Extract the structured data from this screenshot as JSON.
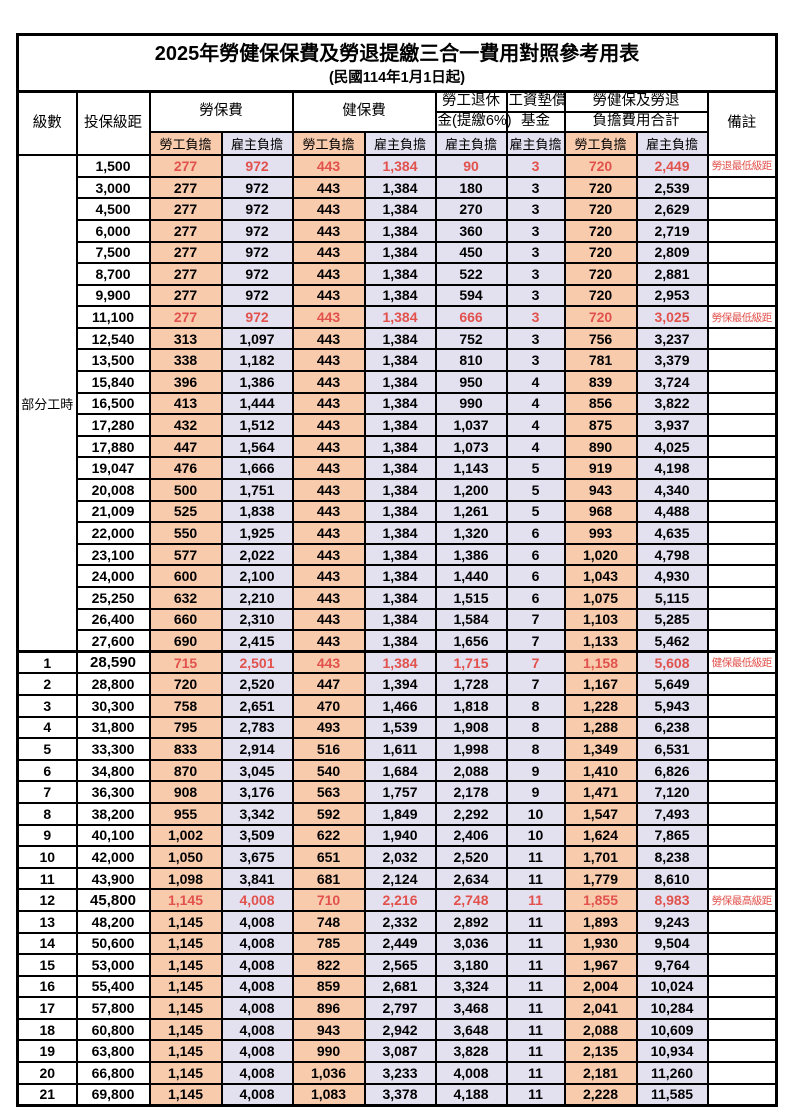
{
  "title": "2025年勞健保保費及勞退提繳三合一費用對照參考用表",
  "subtitle": "(民國114年1月1日起)",
  "header": {
    "level": "級數",
    "bracket": "投保級距",
    "labor_insurance": "勞保費",
    "health_insurance": "健保費",
    "pension_line1": "勞工退休",
    "pension_line2": "金(提繳6%)",
    "wage_fund_line1": "工資墊償",
    "wage_fund_line2": "基金",
    "total_line1": "勞健保及勞退",
    "total_line2": "負擔費用合計",
    "note": "備註",
    "employee_share": "勞工負擔",
    "employer_share": "雇主負擔"
  },
  "part_time_label": "部分工時",
  "part_time_rowspan": 23,
  "colors": {
    "employee_col_bg": "#F8CBAD",
    "employer_col_bg": "#E3E0F0",
    "highlight_number": "#E2524C",
    "note_text": "#E57A74",
    "border": "#000000",
    "page_bg": "#FFFFFF"
  },
  "rows": [
    {
      "level": "",
      "bracket": "1,500",
      "values": [
        "277",
        "972",
        "443",
        "1,384",
        "90",
        "3",
        "720",
        "2,449"
      ],
      "note": "勞退最低級距",
      "highlight": true
    },
    {
      "level": "",
      "bracket": "3,000",
      "values": [
        "277",
        "972",
        "443",
        "1,384",
        "180",
        "3",
        "720",
        "2,539"
      ],
      "note": ""
    },
    {
      "level": "",
      "bracket": "4,500",
      "values": [
        "277",
        "972",
        "443",
        "1,384",
        "270",
        "3",
        "720",
        "2,629"
      ],
      "note": ""
    },
    {
      "level": "",
      "bracket": "6,000",
      "values": [
        "277",
        "972",
        "443",
        "1,384",
        "360",
        "3",
        "720",
        "2,719"
      ],
      "note": ""
    },
    {
      "level": "",
      "bracket": "7,500",
      "values": [
        "277",
        "972",
        "443",
        "1,384",
        "450",
        "3",
        "720",
        "2,809"
      ],
      "note": ""
    },
    {
      "level": "",
      "bracket": "8,700",
      "values": [
        "277",
        "972",
        "443",
        "1,384",
        "522",
        "3",
        "720",
        "2,881"
      ],
      "note": ""
    },
    {
      "level": "",
      "bracket": "9,900",
      "values": [
        "277",
        "972",
        "443",
        "1,384",
        "594",
        "3",
        "720",
        "2,953"
      ],
      "note": ""
    },
    {
      "level": "",
      "bracket": "11,100",
      "values": [
        "277",
        "972",
        "443",
        "1,384",
        "666",
        "3",
        "720",
        "3,025"
      ],
      "note": "勞保最低級距",
      "highlight": true
    },
    {
      "level": "",
      "bracket": "12,540",
      "values": [
        "313",
        "1,097",
        "443",
        "1,384",
        "752",
        "3",
        "756",
        "3,237"
      ],
      "note": ""
    },
    {
      "level": "",
      "bracket": "13,500",
      "values": [
        "338",
        "1,182",
        "443",
        "1,384",
        "810",
        "3",
        "781",
        "3,379"
      ],
      "note": ""
    },
    {
      "level": "",
      "bracket": "15,840",
      "values": [
        "396",
        "1,386",
        "443",
        "1,384",
        "950",
        "4",
        "839",
        "3,724"
      ],
      "note": ""
    },
    {
      "level": "",
      "bracket": "16,500",
      "values": [
        "413",
        "1,444",
        "443",
        "1,384",
        "990",
        "4",
        "856",
        "3,822"
      ],
      "note": ""
    },
    {
      "level": "",
      "bracket": "17,280",
      "values": [
        "432",
        "1,512",
        "443",
        "1,384",
        "1,037",
        "4",
        "875",
        "3,937"
      ],
      "note": ""
    },
    {
      "level": "",
      "bracket": "17,880",
      "values": [
        "447",
        "1,564",
        "443",
        "1,384",
        "1,073",
        "4",
        "890",
        "4,025"
      ],
      "note": ""
    },
    {
      "level": "",
      "bracket": "19,047",
      "values": [
        "476",
        "1,666",
        "443",
        "1,384",
        "1,143",
        "5",
        "919",
        "4,198"
      ],
      "note": ""
    },
    {
      "level": "",
      "bracket": "20,008",
      "values": [
        "500",
        "1,751",
        "443",
        "1,384",
        "1,200",
        "5",
        "943",
        "4,340"
      ],
      "note": ""
    },
    {
      "level": "",
      "bracket": "21,009",
      "values": [
        "525",
        "1,838",
        "443",
        "1,384",
        "1,261",
        "5",
        "968",
        "4,488"
      ],
      "note": ""
    },
    {
      "level": "",
      "bracket": "22,000",
      "values": [
        "550",
        "1,925",
        "443",
        "1,384",
        "1,320",
        "6",
        "993",
        "4,635"
      ],
      "note": ""
    },
    {
      "level": "",
      "bracket": "23,100",
      "values": [
        "577",
        "2,022",
        "443",
        "1,384",
        "1,386",
        "6",
        "1,020",
        "4,798"
      ],
      "note": ""
    },
    {
      "level": "",
      "bracket": "24,000",
      "values": [
        "600",
        "2,100",
        "443",
        "1,384",
        "1,440",
        "6",
        "1,043",
        "4,930"
      ],
      "note": ""
    },
    {
      "level": "",
      "bracket": "25,250",
      "values": [
        "632",
        "2,210",
        "443",
        "1,384",
        "1,515",
        "6",
        "1,075",
        "5,115"
      ],
      "note": ""
    },
    {
      "level": "",
      "bracket": "26,400",
      "values": [
        "660",
        "2,310",
        "443",
        "1,384",
        "1,584",
        "7",
        "1,103",
        "5,285"
      ],
      "note": ""
    },
    {
      "level": "",
      "bracket": "27,600",
      "values": [
        "690",
        "2,415",
        "443",
        "1,384",
        "1,656",
        "7",
        "1,133",
        "5,462"
      ],
      "note": ""
    },
    {
      "level": "1",
      "bracket": "28,590",
      "values": [
        "715",
        "2,501",
        "443",
        "1,384",
        "1,715",
        "7",
        "1,158",
        "5,608"
      ],
      "note": "健保最低級距",
      "highlight": true,
      "thick_top": true,
      "big_bracket": true
    },
    {
      "level": "2",
      "bracket": "28,800",
      "values": [
        "720",
        "2,520",
        "447",
        "1,394",
        "1,728",
        "7",
        "1,167",
        "5,649"
      ],
      "note": ""
    },
    {
      "level": "3",
      "bracket": "30,300",
      "values": [
        "758",
        "2,651",
        "470",
        "1,466",
        "1,818",
        "8",
        "1,228",
        "5,943"
      ],
      "note": ""
    },
    {
      "level": "4",
      "bracket": "31,800",
      "values": [
        "795",
        "2,783",
        "493",
        "1,539",
        "1,908",
        "8",
        "1,288",
        "6,238"
      ],
      "note": ""
    },
    {
      "level": "5",
      "bracket": "33,300",
      "values": [
        "833",
        "2,914",
        "516",
        "1,611",
        "1,998",
        "8",
        "1,349",
        "6,531"
      ],
      "note": ""
    },
    {
      "level": "6",
      "bracket": "34,800",
      "values": [
        "870",
        "3,045",
        "540",
        "1,684",
        "2,088",
        "9",
        "1,410",
        "6,826"
      ],
      "note": ""
    },
    {
      "level": "7",
      "bracket": "36,300",
      "values": [
        "908",
        "3,176",
        "563",
        "1,757",
        "2,178",
        "9",
        "1,471",
        "7,120"
      ],
      "note": ""
    },
    {
      "level": "8",
      "bracket": "38,200",
      "values": [
        "955",
        "3,342",
        "592",
        "1,849",
        "2,292",
        "10",
        "1,547",
        "7,493"
      ],
      "note": ""
    },
    {
      "level": "9",
      "bracket": "40,100",
      "values": [
        "1,002",
        "3,509",
        "622",
        "1,940",
        "2,406",
        "10",
        "1,624",
        "7,865"
      ],
      "note": ""
    },
    {
      "level": "10",
      "bracket": "42,000",
      "values": [
        "1,050",
        "3,675",
        "651",
        "2,032",
        "2,520",
        "11",
        "1,701",
        "8,238"
      ],
      "note": ""
    },
    {
      "level": "11",
      "bracket": "43,900",
      "values": [
        "1,098",
        "3,841",
        "681",
        "2,124",
        "2,634",
        "11",
        "1,779",
        "8,610"
      ],
      "note": ""
    },
    {
      "level": "12",
      "bracket": "45,800",
      "values": [
        "1,145",
        "4,008",
        "710",
        "2,216",
        "2,748",
        "11",
        "1,855",
        "8,983"
      ],
      "note": "勞保最高級距",
      "highlight": true,
      "big_bracket": true
    },
    {
      "level": "13",
      "bracket": "48,200",
      "values": [
        "1,145",
        "4,008",
        "748",
        "2,332",
        "2,892",
        "11",
        "1,893",
        "9,243"
      ],
      "note": ""
    },
    {
      "level": "14",
      "bracket": "50,600",
      "values": [
        "1,145",
        "4,008",
        "785",
        "2,449",
        "3,036",
        "11",
        "1,930",
        "9,504"
      ],
      "note": ""
    },
    {
      "level": "15",
      "bracket": "53,000",
      "values": [
        "1,145",
        "4,008",
        "822",
        "2,565",
        "3,180",
        "11",
        "1,967",
        "9,764"
      ],
      "note": ""
    },
    {
      "level": "16",
      "bracket": "55,400",
      "values": [
        "1,145",
        "4,008",
        "859",
        "2,681",
        "3,324",
        "11",
        "2,004",
        "10,024"
      ],
      "note": ""
    },
    {
      "level": "17",
      "bracket": "57,800",
      "values": [
        "1,145",
        "4,008",
        "896",
        "2,797",
        "3,468",
        "11",
        "2,041",
        "10,284"
      ],
      "note": ""
    },
    {
      "level": "18",
      "bracket": "60,800",
      "values": [
        "1,145",
        "4,008",
        "943",
        "2,942",
        "3,648",
        "11",
        "2,088",
        "10,609"
      ],
      "note": ""
    },
    {
      "level": "19",
      "bracket": "63,800",
      "values": [
        "1,145",
        "4,008",
        "990",
        "3,087",
        "3,828",
        "11",
        "2,135",
        "10,934"
      ],
      "note": ""
    },
    {
      "level": "20",
      "bracket": "66,800",
      "values": [
        "1,145",
        "4,008",
        "1,036",
        "3,233",
        "4,008",
        "11",
        "2,181",
        "11,260"
      ],
      "note": ""
    },
    {
      "level": "21",
      "bracket": "69,800",
      "values": [
        "1,145",
        "4,008",
        "1,083",
        "3,378",
        "4,188",
        "11",
        "2,228",
        "11,585"
      ],
      "note": ""
    }
  ],
  "value_col_types": [
    "emp",
    "er",
    "emp",
    "er",
    "er",
    "er",
    "emp",
    "er"
  ],
  "value_col_names": [
    "labor-ins-employee",
    "labor-ins-employer",
    "health-ins-employee",
    "health-ins-employer",
    "pension-employer",
    "wage-fund-employer",
    "total-employee",
    "total-employer"
  ]
}
